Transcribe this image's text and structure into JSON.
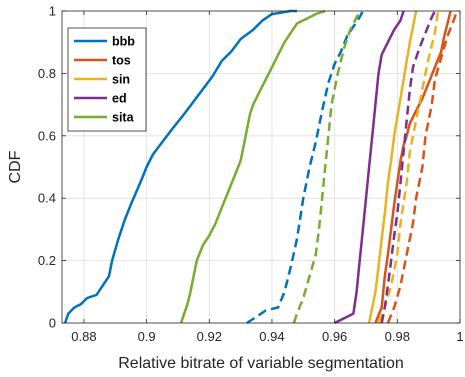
{
  "chart_data": {
    "type": "line",
    "xlabel": "Relative bitrate of variable segmentation",
    "ylabel": "CDF",
    "xlim": [
      0.873,
      1.0
    ],
    "ylim": [
      0,
      1
    ],
    "xticks": [
      0.88,
      0.9,
      0.92,
      0.94,
      0.96,
      0.98,
      1.0
    ],
    "xtick_labels": [
      "0.88",
      "0.9",
      "0.92",
      "0.94",
      "0.96",
      "0.98",
      "1"
    ],
    "yticks": [
      0,
      0.2,
      0.4,
      0.6,
      0.8,
      1.0
    ],
    "ytick_labels": [
      "0",
      "0.2",
      "0.4",
      "0.6",
      "0.8",
      "1"
    ],
    "grid": true,
    "legend_position": "top-left",
    "series": [
      {
        "name": "bbb",
        "color": "#0072BD",
        "style": "solid",
        "points": [
          [
            0.874,
            0.0
          ],
          [
            0.875,
            0.03
          ],
          [
            0.877,
            0.05
          ],
          [
            0.879,
            0.06
          ],
          [
            0.881,
            0.08
          ],
          [
            0.884,
            0.09
          ],
          [
            0.886,
            0.12
          ],
          [
            0.888,
            0.15
          ],
          [
            0.889,
            0.2
          ],
          [
            0.891,
            0.27
          ],
          [
            0.893,
            0.33
          ],
          [
            0.895,
            0.38
          ],
          [
            0.898,
            0.45
          ],
          [
            0.9,
            0.5
          ],
          [
            0.902,
            0.54
          ],
          [
            0.905,
            0.58
          ],
          [
            0.908,
            0.62
          ],
          [
            0.912,
            0.67
          ],
          [
            0.915,
            0.71
          ],
          [
            0.918,
            0.75
          ],
          [
            0.921,
            0.79
          ],
          [
            0.924,
            0.84
          ],
          [
            0.927,
            0.87
          ],
          [
            0.93,
            0.91
          ],
          [
            0.934,
            0.94
          ],
          [
            0.937,
            0.97
          ],
          [
            0.94,
            0.99
          ],
          [
            0.946,
            1.0
          ],
          [
            0.948,
            1.0
          ]
        ]
      },
      {
        "name": "bbb",
        "color": "#0072BD",
        "style": "dashed",
        "points": [
          [
            0.932,
            0.0
          ],
          [
            0.935,
            0.02
          ],
          [
            0.938,
            0.04
          ],
          [
            0.942,
            0.05
          ],
          [
            0.944,
            0.1
          ],
          [
            0.946,
            0.18
          ],
          [
            0.948,
            0.27
          ],
          [
            0.95,
            0.4
          ],
          [
            0.952,
            0.5
          ],
          [
            0.954,
            0.58
          ],
          [
            0.956,
            0.68
          ],
          [
            0.958,
            0.77
          ],
          [
            0.96,
            0.83
          ],
          [
            0.962,
            0.87
          ],
          [
            0.964,
            0.92
          ],
          [
            0.966,
            0.95
          ],
          [
            0.968,
            0.98
          ],
          [
            0.969,
            1.0
          ]
        ]
      },
      {
        "name": "tos",
        "color": "#D95319",
        "style": "solid",
        "points": [
          [
            0.973,
            0.0
          ],
          [
            0.975,
            0.05
          ],
          [
            0.976,
            0.15
          ],
          [
            0.977,
            0.22
          ],
          [
            0.978,
            0.3
          ],
          [
            0.979,
            0.38
          ],
          [
            0.98,
            0.45
          ],
          [
            0.981,
            0.52
          ],
          [
            0.982,
            0.57
          ],
          [
            0.983,
            0.6
          ],
          [
            0.984,
            0.64
          ],
          [
            0.986,
            0.68
          ],
          [
            0.988,
            0.72
          ],
          [
            0.99,
            0.77
          ],
          [
            0.992,
            0.82
          ],
          [
            0.994,
            0.87
          ],
          [
            0.995,
            0.92
          ],
          [
            0.996,
            0.96
          ],
          [
            0.997,
            1.0
          ]
        ]
      },
      {
        "name": "tos",
        "color": "#D95319",
        "style": "dashed",
        "points": [
          [
            0.977,
            0.0
          ],
          [
            0.979,
            0.05
          ],
          [
            0.981,
            0.12
          ],
          [
            0.983,
            0.22
          ],
          [
            0.985,
            0.32
          ],
          [
            0.986,
            0.4
          ],
          [
            0.988,
            0.5
          ],
          [
            0.989,
            0.6
          ],
          [
            0.991,
            0.7
          ],
          [
            0.992,
            0.78
          ],
          [
            0.994,
            0.85
          ],
          [
            0.996,
            0.92
          ],
          [
            0.998,
            0.97
          ],
          [
            0.999,
            1.0
          ]
        ]
      },
      {
        "name": "sin",
        "color": "#EDB120",
        "style": "solid",
        "points": [
          [
            0.971,
            0.0
          ],
          [
            0.972,
            0.05
          ],
          [
            0.973,
            0.1
          ],
          [
            0.974,
            0.18
          ],
          [
            0.975,
            0.27
          ],
          [
            0.976,
            0.35
          ],
          [
            0.977,
            0.45
          ],
          [
            0.978,
            0.52
          ],
          [
            0.979,
            0.6
          ],
          [
            0.98,
            0.66
          ],
          [
            0.981,
            0.72
          ],
          [
            0.982,
            0.78
          ],
          [
            0.983,
            0.84
          ],
          [
            0.984,
            0.9
          ],
          [
            0.985,
            0.95
          ],
          [
            0.986,
            1.0
          ]
        ]
      },
      {
        "name": "sin",
        "color": "#EDB120",
        "style": "dashed",
        "points": [
          [
            0.974,
            0.0
          ],
          [
            0.976,
            0.05
          ],
          [
            0.978,
            0.12
          ],
          [
            0.98,
            0.22
          ],
          [
            0.981,
            0.32
          ],
          [
            0.983,
            0.45
          ],
          [
            0.984,
            0.55
          ],
          [
            0.986,
            0.65
          ],
          [
            0.988,
            0.75
          ],
          [
            0.99,
            0.85
          ],
          [
            0.992,
            0.93
          ],
          [
            0.993,
            1.0
          ]
        ]
      },
      {
        "name": "ed",
        "color": "#7E2F8E",
        "style": "solid",
        "points": [
          [
            0.96,
            0.0
          ],
          [
            0.962,
            0.01
          ],
          [
            0.964,
            0.02
          ],
          [
            0.966,
            0.03
          ],
          [
            0.967,
            0.1
          ],
          [
            0.968,
            0.2
          ],
          [
            0.969,
            0.3
          ],
          [
            0.97,
            0.4
          ],
          [
            0.971,
            0.5
          ],
          [
            0.972,
            0.6
          ],
          [
            0.973,
            0.7
          ],
          [
            0.974,
            0.8
          ],
          [
            0.975,
            0.86
          ],
          [
            0.977,
            0.9
          ],
          [
            0.979,
            0.94
          ],
          [
            0.981,
            0.97
          ],
          [
            0.982,
            1.0
          ]
        ]
      },
      {
        "name": "ed",
        "color": "#7E2F8E",
        "style": "dashed",
        "points": [
          [
            0.975,
            0.0
          ],
          [
            0.976,
            0.05
          ],
          [
            0.977,
            0.12
          ],
          [
            0.978,
            0.2
          ],
          [
            0.979,
            0.28
          ],
          [
            0.98,
            0.35
          ],
          [
            0.981,
            0.45
          ],
          [
            0.982,
            0.55
          ],
          [
            0.983,
            0.65
          ],
          [
            0.984,
            0.75
          ],
          [
            0.985,
            0.82
          ],
          [
            0.987,
            0.88
          ],
          [
            0.989,
            0.93
          ],
          [
            0.991,
            0.98
          ],
          [
            0.992,
            1.0
          ]
        ]
      },
      {
        "name": "sita",
        "color": "#77AC30",
        "style": "solid",
        "points": [
          [
            0.911,
            0.0
          ],
          [
            0.912,
            0.03
          ],
          [
            0.913,
            0.06
          ],
          [
            0.914,
            0.1
          ],
          [
            0.915,
            0.15
          ],
          [
            0.916,
            0.2
          ],
          [
            0.918,
            0.25
          ],
          [
            0.92,
            0.28
          ],
          [
            0.922,
            0.32
          ],
          [
            0.924,
            0.37
          ],
          [
            0.926,
            0.42
          ],
          [
            0.928,
            0.47
          ],
          [
            0.93,
            0.52
          ],
          [
            0.931,
            0.57
          ],
          [
            0.932,
            0.62
          ],
          [
            0.933,
            0.67
          ],
          [
            0.934,
            0.7
          ],
          [
            0.936,
            0.74
          ],
          [
            0.938,
            0.78
          ],
          [
            0.94,
            0.82
          ],
          [
            0.942,
            0.86
          ],
          [
            0.944,
            0.9
          ],
          [
            0.946,
            0.93
          ],
          [
            0.948,
            0.96
          ],
          [
            0.95,
            0.97
          ],
          [
            0.952,
            0.98
          ],
          [
            0.954,
            0.99
          ],
          [
            0.957,
            1.0
          ]
        ]
      },
      {
        "name": "sita",
        "color": "#77AC30",
        "style": "dashed",
        "points": [
          [
            0.947,
            0.0
          ],
          [
            0.948,
            0.03
          ],
          [
            0.95,
            0.08
          ],
          [
            0.952,
            0.15
          ],
          [
            0.954,
            0.22
          ],
          [
            0.955,
            0.3
          ],
          [
            0.956,
            0.4
          ],
          [
            0.957,
            0.5
          ],
          [
            0.958,
            0.6
          ],
          [
            0.959,
            0.7
          ],
          [
            0.961,
            0.8
          ],
          [
            0.963,
            0.88
          ],
          [
            0.965,
            0.94
          ],
          [
            0.967,
            0.98
          ],
          [
            0.968,
            1.0
          ]
        ]
      }
    ],
    "legend": [
      {
        "label": "bbb",
        "color": "#0072BD"
      },
      {
        "label": "tos",
        "color": "#D95319"
      },
      {
        "label": "sin",
        "color": "#EDB120"
      },
      {
        "label": "ed",
        "color": "#7E2F8E"
      },
      {
        "label": "sita",
        "color": "#77AC30"
      }
    ]
  }
}
